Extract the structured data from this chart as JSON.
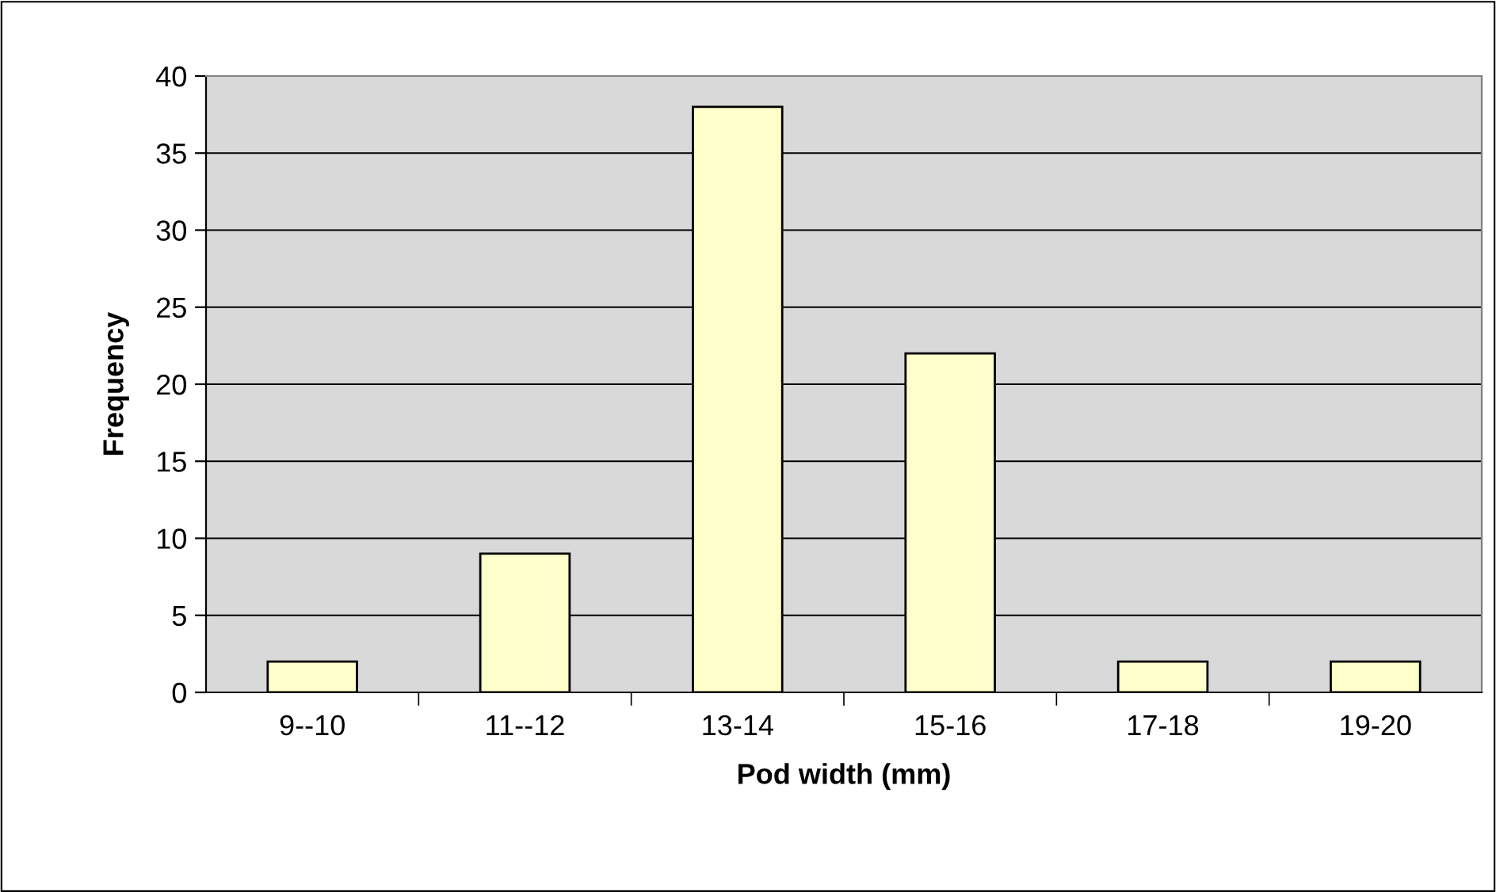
{
  "chart_data": {
    "type": "bar",
    "xlabel": "Pod width (mm)",
    "ylabel": "Frequency",
    "categories": [
      "9--10",
      "11--12",
      "13-14",
      "15-16",
      "17-18",
      "19-20"
    ],
    "values": [
      2,
      9,
      38,
      22,
      2,
      2
    ],
    "color": "#ffffcc",
    "ylim": [
      0,
      40
    ],
    "yticks": [
      0,
      5,
      10,
      15,
      20,
      25,
      30,
      35,
      40
    ],
    "grid": "y"
  }
}
